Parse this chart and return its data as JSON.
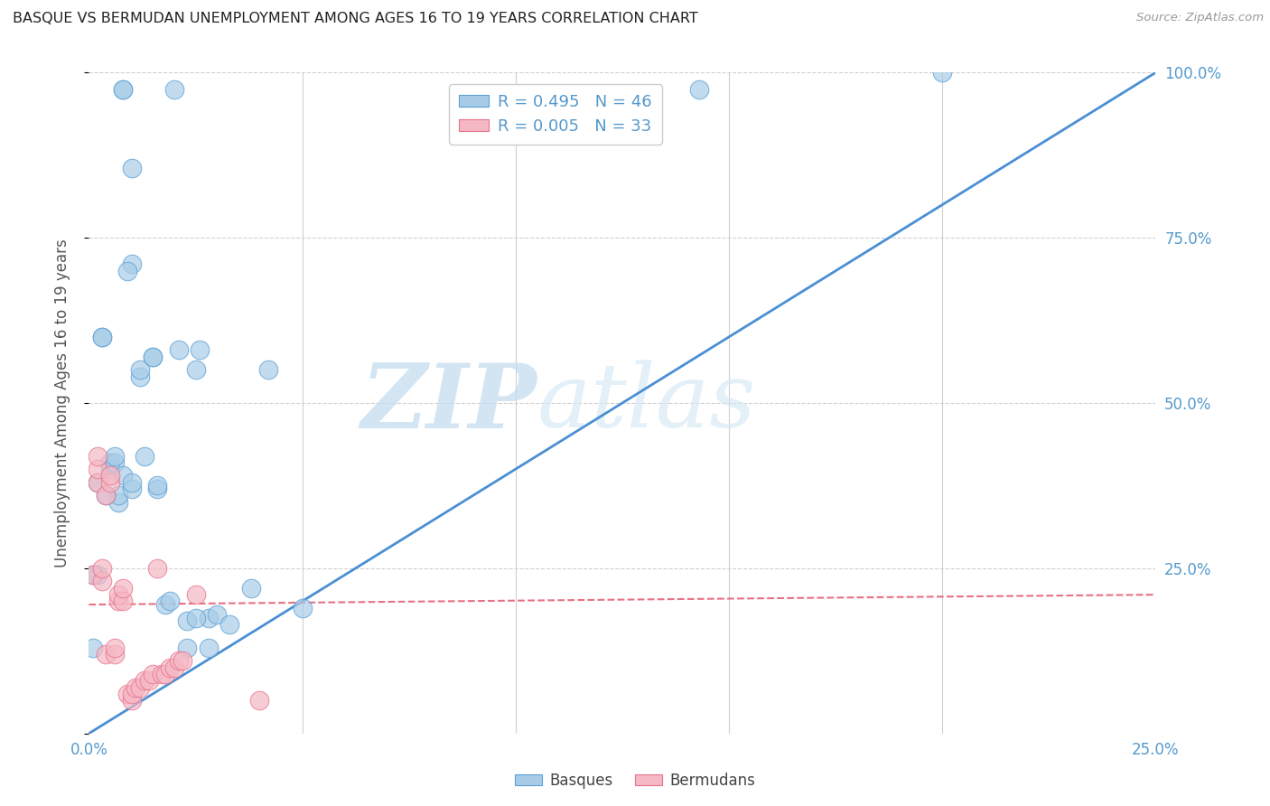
{
  "title": "BASQUE VS BERMUDAN UNEMPLOYMENT AMONG AGES 16 TO 19 YEARS CORRELATION CHART",
  "source": "Source: ZipAtlas.com",
  "ylabel": "Unemployment Among Ages 16 to 19 years",
  "watermark_zip": "ZIP",
  "watermark_atlas": "atlas",
  "legend_blue_r": "R = 0.495",
  "legend_blue_n": "N = 46",
  "legend_pink_r": "R = 0.005",
  "legend_pink_n": "N = 33",
  "legend_blue_label": "Basques",
  "legend_pink_label": "Bermudans",
  "xmin": 0.0,
  "xmax": 0.25,
  "ymin": 0.0,
  "ymax": 1.0,
  "yticks": [
    0.0,
    0.25,
    0.5,
    0.75,
    1.0
  ],
  "ytick_labels": [
    "",
    "25.0%",
    "50.0%",
    "75.0%",
    "100.0%"
  ],
  "xticks": [
    0.0,
    0.05,
    0.1,
    0.15,
    0.2,
    0.25
  ],
  "xtick_labels": [
    "0.0%",
    "",
    "",
    "",
    "",
    "25.0%"
  ],
  "blue_color": "#a8cce8",
  "pink_color": "#f5b8c4",
  "blue_edge_color": "#5a9fd4",
  "pink_edge_color": "#e8708a",
  "blue_line_color": "#4a8fd4",
  "pink_line_color": "#e87085",
  "axis_label_color": "#5599cc",
  "grid_color": "#d0d0d0",
  "basque_x": [
    0.008,
    0.008,
    0.02,
    0.01,
    0.01,
    0.003,
    0.003,
    0.012,
    0.012,
    0.005,
    0.005,
    0.006,
    0.015,
    0.015,
    0.007,
    0.007,
    0.018,
    0.016,
    0.016,
    0.023,
    0.023,
    0.028,
    0.028,
    0.03,
    0.033,
    0.038,
    0.042,
    0.05,
    0.143,
    0.2,
    0.002,
    0.002,
    0.004,
    0.006,
    0.008,
    0.01,
    0.01,
    0.013,
    0.019,
    0.021,
    0.025,
    0.025,
    0.001,
    0.001,
    0.009,
    0.026
  ],
  "basque_y": [
    0.975,
    0.975,
    0.975,
    0.855,
    0.71,
    0.6,
    0.6,
    0.54,
    0.55,
    0.41,
    0.4,
    0.41,
    0.57,
    0.57,
    0.35,
    0.36,
    0.195,
    0.37,
    0.375,
    0.13,
    0.17,
    0.175,
    0.13,
    0.18,
    0.165,
    0.22,
    0.55,
    0.19,
    0.975,
    1.0,
    0.24,
    0.38,
    0.36,
    0.42,
    0.39,
    0.37,
    0.38,
    0.42,
    0.2,
    0.58,
    0.175,
    0.55,
    0.13,
    0.24,
    0.7,
    0.58
  ],
  "bermudan_x": [
    0.001,
    0.002,
    0.002,
    0.003,
    0.003,
    0.004,
    0.004,
    0.005,
    0.005,
    0.006,
    0.006,
    0.007,
    0.007,
    0.008,
    0.008,
    0.009,
    0.01,
    0.01,
    0.011,
    0.012,
    0.013,
    0.014,
    0.015,
    0.016,
    0.017,
    0.018,
    0.019,
    0.02,
    0.021,
    0.022,
    0.025,
    0.04,
    0.002
  ],
  "bermudan_y": [
    0.24,
    0.38,
    0.4,
    0.23,
    0.25,
    0.12,
    0.36,
    0.38,
    0.39,
    0.12,
    0.13,
    0.2,
    0.21,
    0.2,
    0.22,
    0.06,
    0.05,
    0.06,
    0.07,
    0.07,
    0.08,
    0.08,
    0.09,
    0.25,
    0.09,
    0.09,
    0.1,
    0.1,
    0.11,
    0.11,
    0.21,
    0.05,
    0.42
  ],
  "blue_line_x": [
    0.0,
    0.25
  ],
  "blue_line_y": [
    0.0,
    1.0
  ],
  "pink_line_x": [
    0.0,
    0.25
  ],
  "pink_line_y": [
    0.195,
    0.21
  ]
}
